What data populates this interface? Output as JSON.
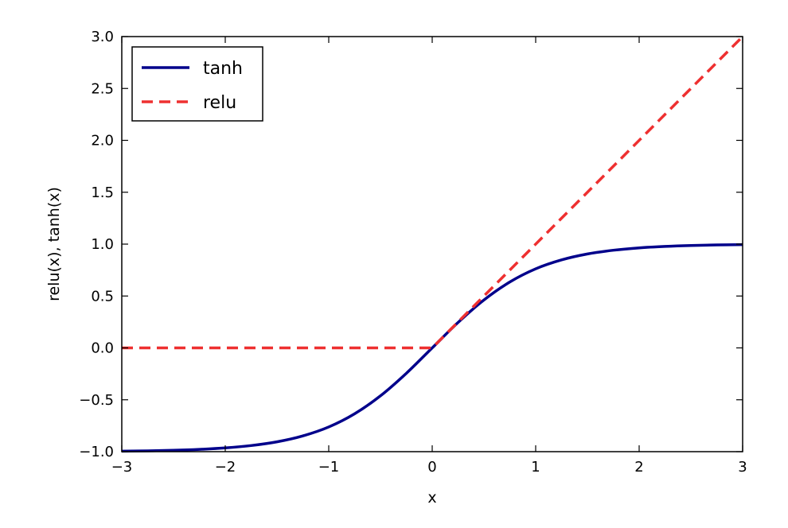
{
  "chart_data": {
    "type": "line",
    "xlabel": "x",
    "ylabel": "relu(x), tanh(x)",
    "xlim": [
      -3,
      3
    ],
    "ylim": [
      -1,
      3
    ],
    "xticks": [
      -3,
      -2,
      -1,
      0,
      1,
      2,
      3
    ],
    "xtick_labels": [
      "−3",
      "−2",
      "−1",
      "0",
      "1",
      "2",
      "3"
    ],
    "yticks": [
      -1.0,
      -0.5,
      0.0,
      0.5,
      1.0,
      1.5,
      2.0,
      2.5,
      3.0
    ],
    "ytick_labels": [
      "−1.0",
      "−0.5",
      "0.0",
      "0.5",
      "1.0",
      "1.5",
      "2.0",
      "2.5",
      "3.0"
    ],
    "grid": false,
    "legend_position": "top-left",
    "series": [
      {
        "name": "tanh",
        "color": "#00008b",
        "style": "solid",
        "x": [
          -3,
          -2.75,
          -2.5,
          -2.25,
          -2,
          -1.75,
          -1.5,
          -1.25,
          -1,
          -0.75,
          -0.5,
          -0.25,
          0,
          0.25,
          0.5,
          0.75,
          1,
          1.25,
          1.5,
          1.75,
          2,
          2.25,
          2.5,
          2.75,
          3
        ],
        "y": [
          -0.995,
          -0.992,
          -0.987,
          -0.978,
          -0.964,
          -0.941,
          -0.905,
          -0.848,
          -0.762,
          -0.635,
          -0.462,
          -0.245,
          0,
          0.245,
          0.462,
          0.635,
          0.762,
          0.848,
          0.905,
          0.941,
          0.964,
          0.978,
          0.987,
          0.992,
          0.995
        ]
      },
      {
        "name": "relu",
        "color": "#ee3030",
        "style": "dashed",
        "x": [
          -3,
          0,
          3
        ],
        "y": [
          0,
          0,
          3
        ]
      }
    ]
  }
}
